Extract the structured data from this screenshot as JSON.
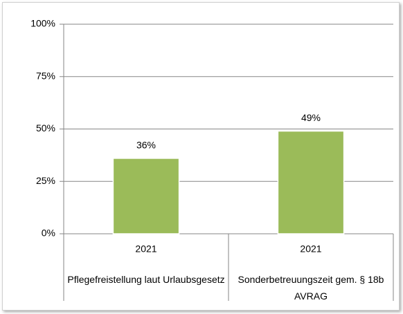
{
  "chart_data": {
    "type": "bar",
    "categories": [
      "2021",
      "2021"
    ],
    "groups": [
      "Pflegefreistellung laut Urlaubsgesetz",
      "Sonderbetreuungszeit gem. § 18b AVRAG"
    ],
    "values": [
      36,
      49
    ],
    "value_labels": [
      "36%",
      "49%"
    ],
    "color": "#9bbb59",
    "ylim": [
      0,
      100
    ],
    "yticks": [
      {
        "value": 0,
        "label": "0%"
      },
      {
        "value": 25,
        "label": "25%"
      },
      {
        "value": 50,
        "label": "50%"
      },
      {
        "value": 75,
        "label": "75%"
      },
      {
        "value": 100,
        "label": "100%"
      }
    ],
    "grid": true
  }
}
